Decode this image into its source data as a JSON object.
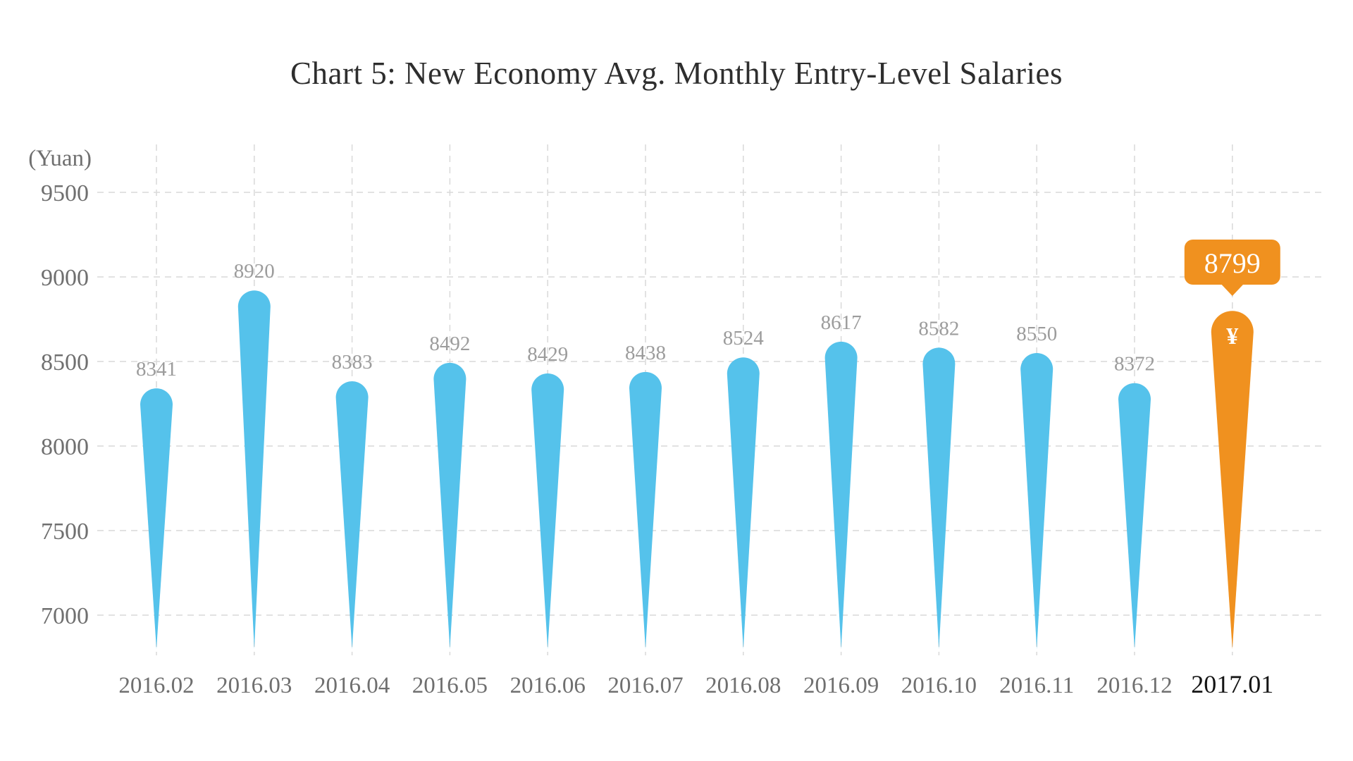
{
  "title": "Chart 5: New Economy Avg. Monthly Entry-Level Salaries",
  "chart_data": {
    "type": "bar",
    "title": "Chart 5: New Economy Avg. Monthly Entry-Level Salaries",
    "ylabel": "(Yuan)",
    "xlabel": "",
    "categories": [
      "2016.02",
      "2016.03",
      "2016.04",
      "2016.05",
      "2016.06",
      "2016.07",
      "2016.08",
      "2016.09",
      "2016.10",
      "2016.11",
      "2016.12",
      "2017.01"
    ],
    "values": [
      8341,
      8920,
      8383,
      8492,
      8429,
      8438,
      8524,
      8617,
      8582,
      8550,
      8372,
      8799
    ],
    "yticks": [
      7000,
      7500,
      8000,
      8500,
      9000,
      9500
    ],
    "ylim": [
      6800,
      9600
    ],
    "grid": "dashed-horizontal-and-vertical",
    "legend": "none",
    "bar_style": "teardrop",
    "highlight": {
      "index": 11,
      "category": "2017.01",
      "value": 8799,
      "callout_label": "8799",
      "currency_symbol": "¥"
    },
    "colors": {
      "bar": "#55C2EB",
      "highlight_bar": "#F0911F",
      "gridline": "#D9D9D9",
      "y_tick_label": "#6F6F6F",
      "axis_unit_label": "#6F6F6F",
      "data_label": "#9C9C9C",
      "x_tick_label": "#6F6F6F",
      "x_tick_label_highlight": "#141414",
      "callout_text": "#FFFFFF",
      "title_color": "#2E2E2E",
      "background": "#FFFFFF"
    }
  }
}
